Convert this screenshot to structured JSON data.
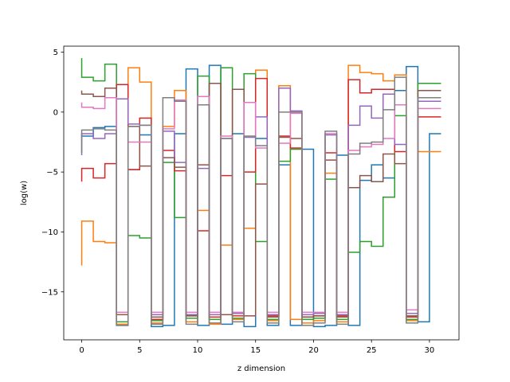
{
  "chart_data": {
    "type": "line",
    "drawstyle": "steps",
    "xlabel": "z dimension",
    "ylabel": "log(w)",
    "xlim": [
      -1.55,
      32.55
    ],
    "ylim": [
      -19.0,
      5.5
    ],
    "xticks": [
      0,
      5,
      10,
      15,
      20,
      25,
      30
    ],
    "yticks": [
      -15,
      -10,
      -5,
      0,
      5
    ],
    "ytick_labels": [
      "−15",
      "−10",
      "−5",
      "0",
      "5"
    ],
    "x": [
      0,
      1,
      2,
      3,
      4,
      5,
      6,
      7,
      8,
      9,
      10,
      11,
      12,
      13,
      14,
      15,
      16,
      17,
      18,
      19,
      20,
      21,
      22,
      23,
      24,
      25,
      26,
      27,
      28,
      29,
      30,
      31
    ],
    "series": [
      {
        "color": "#1f77b4",
        "values": [
          -1.9,
          -2.0,
          -1.3,
          -1.2,
          -17.8,
          -4.8,
          -1.9,
          -17.9,
          -17.8,
          -1.8,
          3.6,
          -17.8,
          3.9,
          -17.7,
          -1.8,
          -17.9,
          -2.2,
          -17.8,
          -4.4,
          -17.8,
          -3.1,
          -17.9,
          -17.8,
          -3.6,
          -17.8,
          -5.7,
          -4.4,
          -5.5,
          1.8,
          3.8,
          -17.5,
          -1.8
        ]
      },
      {
        "color": "#ff7f0e",
        "values": [
          -12.8,
          -9.1,
          -10.8,
          -10.9,
          -17.7,
          3.7,
          2.5,
          -17.6,
          -1.2,
          1.8,
          -17.5,
          -8.2,
          -17.7,
          -11.1,
          -17.3,
          -9.7,
          3.5,
          -17.4,
          2.2,
          -17.3,
          -17.6,
          -17.4,
          -5.1,
          -17.5,
          3.9,
          3.3,
          3.2,
          2.6,
          3.1,
          -17.4,
          -3.3,
          -3.3
        ]
      },
      {
        "color": "#2ca02c",
        "values": [
          4.5,
          2.9,
          2.6,
          4.0,
          -17.5,
          -10.3,
          -10.5,
          -17.4,
          -4.2,
          -8.8,
          -17.2,
          3.0,
          -17.3,
          3.7,
          -17.2,
          3.2,
          -10.8,
          -17.3,
          -4.1,
          -3.1,
          -17.3,
          -17.2,
          -5.6,
          -17.3,
          -11.7,
          -10.8,
          -11.2,
          -7.1,
          -0.3,
          -17.3,
          2.4,
          2.4
        ]
      },
      {
        "color": "#d62728",
        "values": [
          -5.8,
          -4.7,
          -5.5,
          -4.3,
          2.3,
          -4.8,
          -0.5,
          -17.3,
          -3.2,
          -4.9,
          -17.0,
          -9.9,
          -17.1,
          -5.3,
          -17.0,
          -5.0,
          2.8,
          -17.0,
          -2.0,
          -3.0,
          -17.1,
          -17.0,
          -3.4,
          -17.0,
          2.7,
          1.6,
          1.9,
          1.9,
          -3.3,
          -17.1,
          -0.4,
          -0.4
        ]
      },
      {
        "color": "#9467bd",
        "values": [
          -3.6,
          -1.8,
          -2.2,
          -1.8,
          1.1,
          -1.0,
          -1.1,
          -16.9,
          -1.6,
          -4.2,
          -16.9,
          -4.7,
          -16.9,
          -2.2,
          -16.8,
          -2.1,
          -0.4,
          -16.9,
          2.0,
          0.1,
          -16.9,
          -16.8,
          -1.9,
          -16.9,
          -1.1,
          0.5,
          -0.5,
          1.5,
          -2.7,
          -16.8,
          0.9,
          0.9
        ]
      },
      {
        "color": "#8c564b",
        "values": [
          1.8,
          1.5,
          1.3,
          2.0,
          -16.9,
          -1.2,
          -4.5,
          -17.1,
          -3.8,
          -4.6,
          -17.0,
          -4.4,
          2.4,
          -16.9,
          1.9,
          -17.0,
          -6.0,
          -17.1,
          -2.1,
          -2.2,
          -17.1,
          -17.0,
          -4.0,
          -17.1,
          -6.3,
          -5.3,
          -5.8,
          -3.5,
          -4.3,
          -17.0,
          1.8,
          1.8
        ]
      },
      {
        "color": "#e377c2",
        "values": [
          0.8,
          0.4,
          0.3,
          1.2,
          -16.7,
          -2.5,
          -2.5,
          -16.7,
          -1.4,
          1.0,
          -16.7,
          1.3,
          -16.7,
          -2.0,
          -16.7,
          0.8,
          -3.0,
          -16.7,
          -2.6,
          -0.1,
          -16.7,
          -16.7,
          -1.8,
          -16.7,
          -3.2,
          -2.9,
          -2.7,
          -2.2,
          0.6,
          -16.5,
          0.3,
          0.3
        ]
      },
      {
        "color": "#7f7f7f",
        "values": [
          -3.4,
          -1.5,
          -1.4,
          -1.5,
          -17.8,
          -1.2,
          -1.1,
          -17.7,
          1.2,
          0.9,
          -17.7,
          0.6,
          -17.6,
          -2.2,
          -17.5,
          -2.0,
          -2.8,
          -17.6,
          0.0,
          0.0,
          -17.8,
          -17.6,
          -1.6,
          -17.7,
          -3.5,
          -2.6,
          -2.5,
          0.2,
          2.9,
          -17.6,
          1.2,
          1.2
        ]
      }
    ]
  }
}
